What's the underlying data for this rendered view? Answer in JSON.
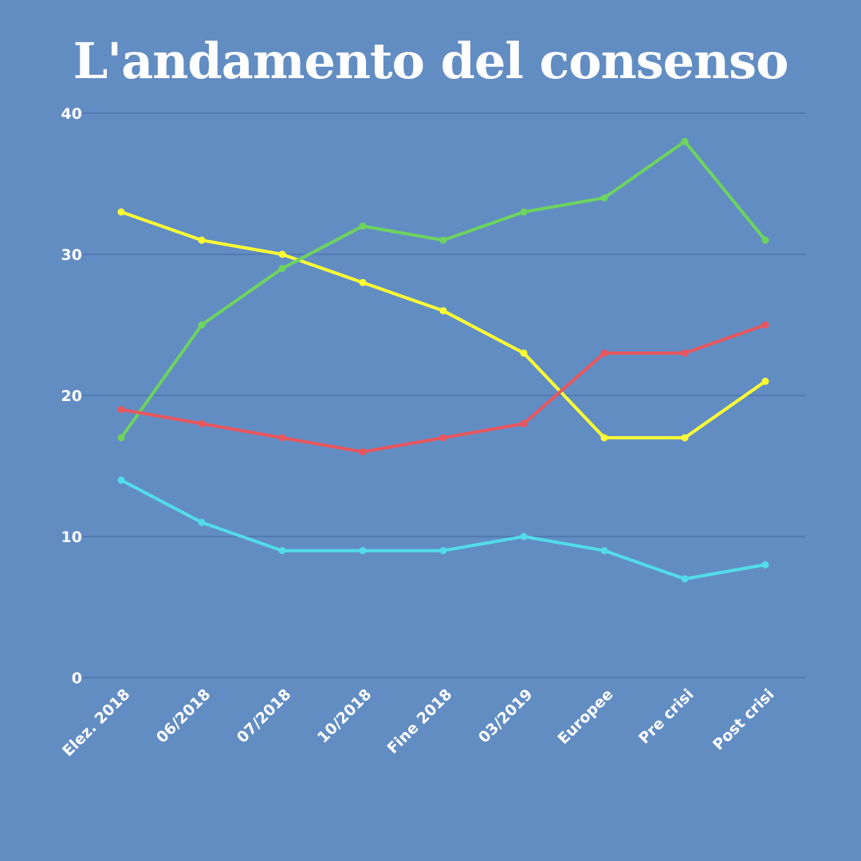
{
  "title": "L'andamento del consenso",
  "chart_data": {
    "type": "line",
    "title": "L'andamento del consenso",
    "xlabel": "",
    "ylabel": "",
    "categories": [
      "Elez. 2018",
      "06/2018",
      "07/2018",
      "10/2018",
      "Fine 2018",
      "03/2019",
      "Europee",
      "Pre crisi",
      "Post crisi"
    ],
    "ylim": [
      0,
      40
    ],
    "yticks": [
      0,
      10,
      20,
      30,
      40
    ],
    "grid": true,
    "legend": "none",
    "series": [
      {
        "color": "#FFFF33",
        "values": [
          33,
          31,
          30,
          28,
          26,
          23,
          17,
          17,
          21
        ]
      },
      {
        "color": "#6DD45E",
        "values": [
          17,
          25,
          29,
          32,
          31,
          33,
          34,
          38,
          31
        ]
      },
      {
        "color": "#E8575E",
        "values": [
          19,
          18,
          17,
          16,
          17,
          18,
          23,
          23,
          25
        ]
      },
      {
        "color": "#52DCE8",
        "values": [
          14,
          11,
          9,
          9,
          9,
          10,
          9,
          7,
          8
        ]
      }
    ]
  }
}
